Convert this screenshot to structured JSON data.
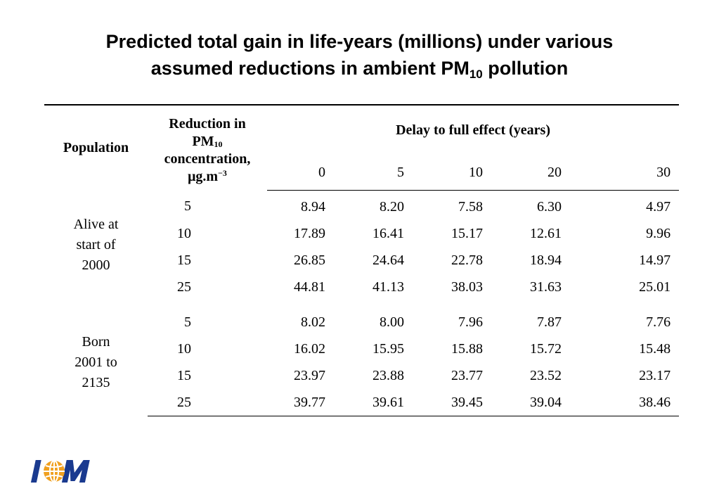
{
  "title": {
    "line1": "Predicted total gain in life-years (millions) under various",
    "line2_pre": "assumed reductions in ambient PM",
    "line2_sub": "10",
    "line2_post": " pollution"
  },
  "table": {
    "population_header": "Population",
    "reduction_header": {
      "line1": "Reduction in",
      "pm": "PM",
      "pm_sub": "10",
      "line3": "concentration,",
      "unit": "μg.m",
      "unit_sup": "−3"
    },
    "delay_header": "Delay to full effect (years)",
    "delays": [
      "0",
      "5",
      "10",
      "20",
      "30"
    ],
    "groups": [
      {
        "population": "Alive at start of 2000",
        "rows": [
          {
            "reduction": "5",
            "values": [
              "8.94",
              "8.20",
              "7.58",
              "6.30",
              "4.97"
            ]
          },
          {
            "reduction": "10",
            "values": [
              "17.89",
              "16.41",
              "15.17",
              "12.61",
              "9.96"
            ]
          },
          {
            "reduction": "15",
            "values": [
              "26.85",
              "24.64",
              "22.78",
              "18.94",
              "14.97"
            ]
          },
          {
            "reduction": "25",
            "values": [
              "44.81",
              "41.13",
              "38.03",
              "31.63",
              "25.01"
            ]
          }
        ]
      },
      {
        "population": "Born 2001 to 2135",
        "rows": [
          {
            "reduction": "5",
            "values": [
              "8.02",
              "8.00",
              "7.96",
              "7.87",
              "7.76"
            ]
          },
          {
            "reduction": "10",
            "values": [
              "16.02",
              "15.95",
              "15.88",
              "15.72",
              "15.48"
            ]
          },
          {
            "reduction": "15",
            "values": [
              "23.97",
              "23.88",
              "23.77",
              "23.52",
              "23.17"
            ]
          },
          {
            "reduction": "25",
            "values": [
              "39.77",
              "39.61",
              "39.45",
              "39.04",
              "38.46"
            ]
          }
        ]
      }
    ]
  },
  "logo": {
    "text": "IOM",
    "colors": {
      "letters": "#1a3a8f",
      "globe": "#f0a020"
    }
  }
}
